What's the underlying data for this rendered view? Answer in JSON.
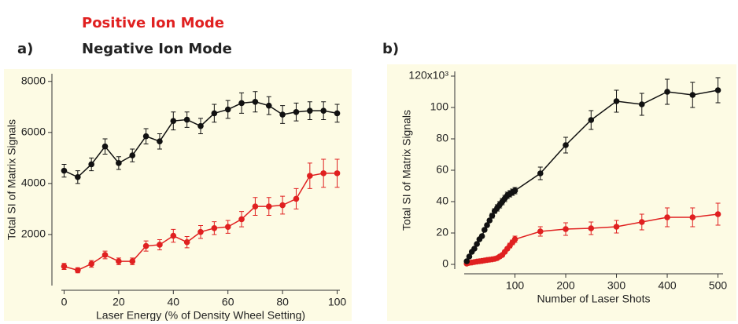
{
  "chart_data": [
    {
      "type": "line",
      "panel_label": "a)",
      "ylabel": "Total SI of Matrix Signals",
      "xlabel": "Laser Energy (% of  Density Wheel Setting)",
      "xlim": [
        -1,
        101
      ],
      "ylim": [
        0,
        8300
      ],
      "xticks": [
        0,
        20,
        40,
        60,
        80,
        100
      ],
      "yticks": [
        2000,
        4000,
        6000,
        8000
      ],
      "background": "#fdfbe4",
      "x": [
        0,
        5,
        10,
        15,
        20,
        25,
        30,
        35,
        40,
        45,
        50,
        55,
        60,
        65,
        70,
        75,
        80,
        85,
        90,
        95,
        100
      ],
      "series": [
        {
          "name": "Positive Ion Mode",
          "color": "#e02020",
          "values": [
            750,
            600,
            850,
            1200,
            950,
            950,
            1550,
            1600,
            1950,
            1700,
            2100,
            2250,
            2300,
            2600,
            3100,
            3100,
            3150,
            3400,
            4300,
            4400,
            4400
          ],
          "errors": [
            120,
            100,
            130,
            150,
            130,
            130,
            200,
            200,
            250,
            220,
            250,
            250,
            250,
            300,
            350,
            350,
            350,
            400,
            500,
            550,
            550
          ]
        },
        {
          "name": "Negative Ion Mode",
          "color": "#111111",
          "values": [
            4500,
            4250,
            4750,
            5450,
            4800,
            5100,
            5850,
            5650,
            6450,
            6500,
            6250,
            6750,
            6900,
            7150,
            7200,
            7050,
            6700,
            6800,
            6850,
            6850,
            6750
          ],
          "errors": [
            250,
            250,
            250,
            300,
            250,
            250,
            300,
            300,
            350,
            300,
            300,
            350,
            350,
            400,
            400,
            350,
            350,
            350,
            350,
            350,
            350
          ]
        }
      ]
    },
    {
      "type": "line",
      "panel_label": "b)",
      "ylabel": "Total SI of Matrix Signals",
      "xlabel": "Number of Laser Shots",
      "xlim": [
        0,
        510
      ],
      "ylim": [
        -3,
        123
      ],
      "xticks": [
        100,
        200,
        300,
        400,
        500
      ],
      "yticks": [
        0,
        20,
        40,
        60,
        80,
        100,
        {
          "value": 120,
          "label": "120x10³"
        }
      ],
      "background": "#fdfbe4",
      "x": [
        5,
        10,
        15,
        20,
        25,
        30,
        35,
        40,
        45,
        50,
        55,
        60,
        65,
        70,
        75,
        80,
        85,
        90,
        95,
        100,
        150,
        200,
        250,
        300,
        350,
        400,
        450,
        500
      ],
      "series": [
        {
          "name": "Positive Ion Mode",
          "color": "#e02020",
          "values": [
            0.5,
            1,
            1.2,
            1.5,
            1.8,
            2,
            2.2,
            2.5,
            2.8,
            3,
            3.2,
            3.5,
            4,
            5,
            6,
            8,
            10,
            12,
            14,
            16,
            21,
            22.5,
            23,
            24,
            27,
            30,
            30,
            32
          ],
          "errors": [
            0.5,
            0.5,
            0.5,
            0.5,
            0.5,
            0.5,
            0.5,
            0.5,
            0.5,
            0.5,
            0.5,
            0.5,
            0.5,
            0.8,
            1,
            1,
            1,
            1.5,
            1.5,
            2,
            3,
            4,
            4,
            4,
            5,
            6,
            6,
            7
          ]
        },
        {
          "name": "Negative Ion Mode",
          "color": "#111111",
          "values": [
            2,
            5,
            8,
            10,
            13,
            16,
            18,
            22,
            25,
            28,
            31,
            34,
            36,
            38,
            40,
            42,
            44,
            45,
            46,
            47,
            58,
            76,
            92,
            104,
            102,
            110,
            108,
            111
          ],
          "errors": [
            0.5,
            0.5,
            0.5,
            0.5,
            0.5,
            0.5,
            1,
            1,
            1,
            1,
            1.5,
            1.5,
            2,
            2,
            2,
            2,
            2,
            2,
            2,
            2,
            4,
            5,
            6,
            7,
            7,
            8,
            8,
            8
          ]
        }
      ]
    }
  ]
}
